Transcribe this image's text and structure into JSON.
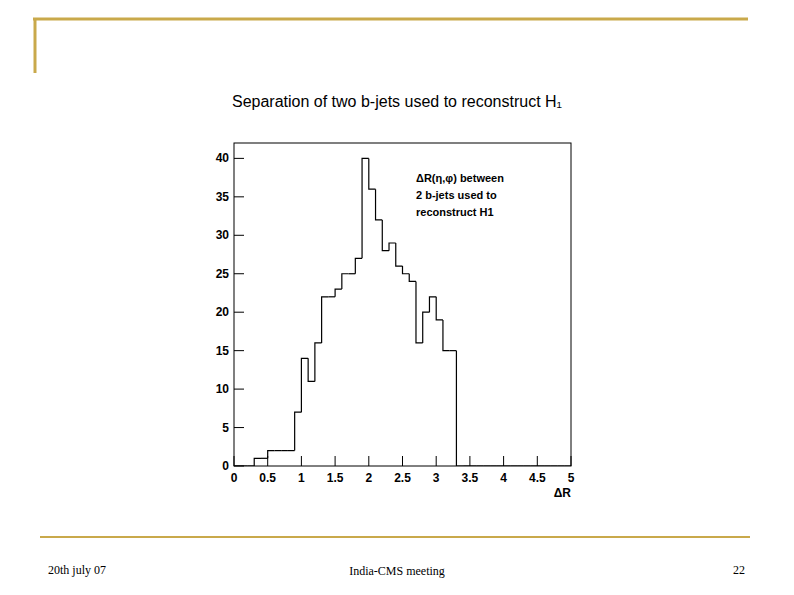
{
  "chart_data": {
    "type": "histogram",
    "title": "Separation of two b-jets used to reconstruct H₁",
    "annotations": [
      "ΔR(η,φ) between",
      "2 b-jets used  to",
      "reconstruct H1"
    ],
    "x_label": "ΔR",
    "bins": [
      0,
      0.1,
      0.2,
      0.3,
      0.4,
      0.5,
      0.6,
      0.7,
      0.8,
      0.9,
      1,
      1.1,
      1.2,
      1.3,
      1.4,
      1.5,
      1.6,
      1.7,
      1.8,
      1.9,
      2,
      2.1,
      2.2,
      2.3,
      2.4,
      2.5,
      2.6,
      2.7,
      2.8,
      2.9,
      3,
      3.1,
      3.2,
      3.3,
      3.4,
      3.5,
      3.6,
      3.7,
      3.8,
      3.9,
      4,
      4.1,
      4.2,
      4.3,
      4.4,
      4.5,
      4.6,
      4.7,
      4.8,
      4.9,
      5
    ],
    "values": [
      0,
      0,
      0,
      1,
      1,
      2,
      2,
      2,
      2,
      7,
      14,
      11,
      16,
      22,
      22,
      23,
      25,
      25,
      27,
      40,
      36,
      32,
      28,
      29,
      26,
      25,
      24,
      16,
      20,
      22,
      19,
      15,
      15,
      0,
      0,
      0,
      0,
      0,
      0,
      0,
      0,
      0,
      0,
      0,
      0,
      0,
      0,
      0,
      0,
      0
    ],
    "color": "#000000",
    "xlim": [
      0,
      5
    ],
    "ylim": [
      0,
      42
    ],
    "xticks": [
      0,
      0.5,
      1,
      1.5,
      2,
      2.5,
      3,
      3.5,
      4,
      4.5,
      5
    ],
    "yticks": [
      0,
      5,
      10,
      15,
      20,
      25,
      30,
      35,
      40
    ],
    "grid": false
  },
  "footer": {
    "date": "20th july 07",
    "meeting": "India-CMS meeting",
    "page": "22"
  }
}
